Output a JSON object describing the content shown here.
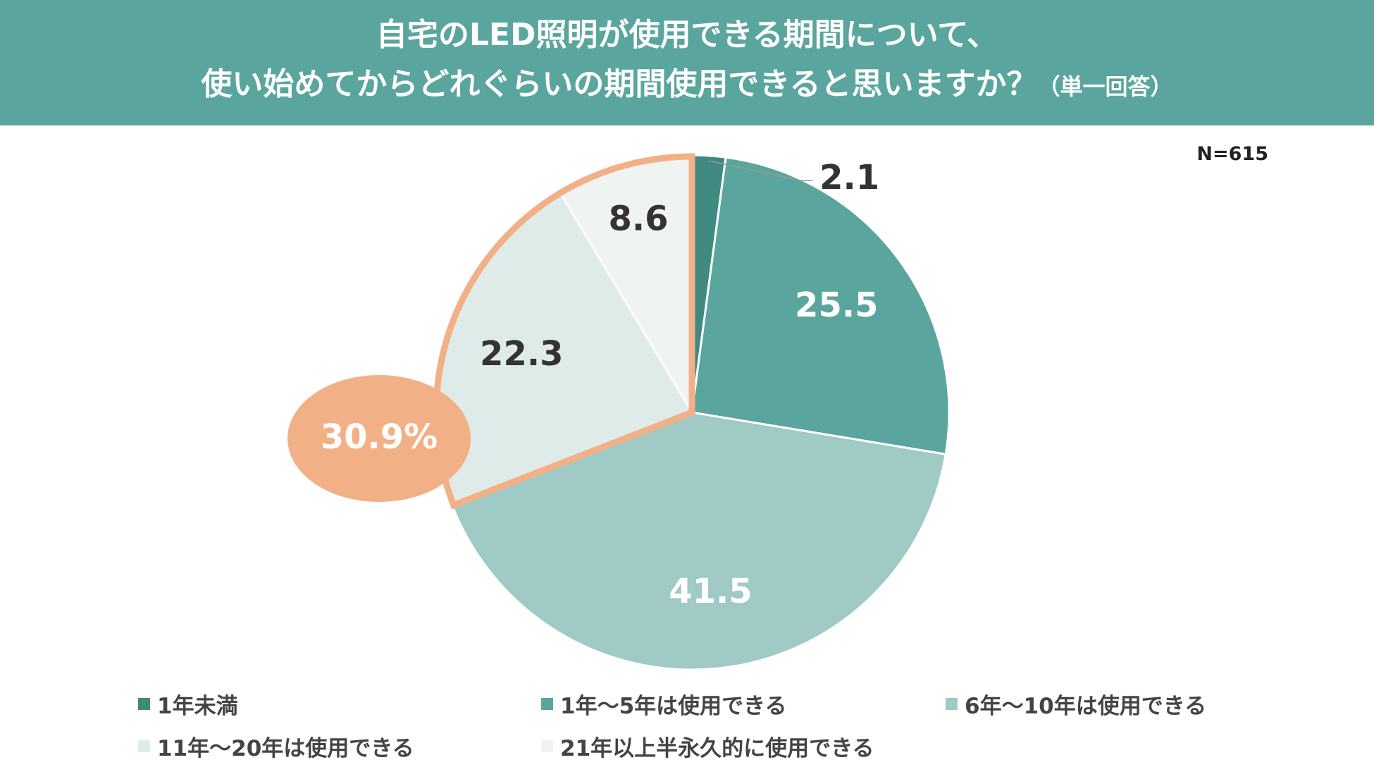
{
  "header": {
    "title_line1": "自宅のLED照明が使用できる期間について、",
    "title_line2": "使い始めてからどれぐらいの期間使用できると思いますか？",
    "title_note": "（単一回答）"
  },
  "sample_size": "N=615",
  "chart_data": {
    "type": "pie",
    "title": "自宅のLED照明が使用できる期間について、使い始めてからどれぐらいの期間使用できると思いますか？（単一回答）",
    "unit": "%",
    "start_angle": "12 o'clock",
    "direction": "clockwise",
    "slices": [
      {
        "label": "1年未満",
        "value": 2.1,
        "color": "#3f8a80",
        "label_color": "#333333",
        "value_text": "2.1"
      },
      {
        "label": "1年～5年は使用できる",
        "value": 25.5,
        "color": "#5aa69e",
        "label_color": "#ffffff",
        "value_text": "25.5"
      },
      {
        "label": "6年～10年は使用できる",
        "value": 41.5,
        "color": "#9fcac6",
        "label_color": "#ffffff",
        "value_text": "41.5"
      },
      {
        "label": "11年～20年は使用できる",
        "value": 22.3,
        "color": "#deebe9",
        "label_color": "#333333",
        "value_text": "22.3"
      },
      {
        "label": "21年以上半永久的に使用できる",
        "value": 8.6,
        "color": "#eff3f2",
        "label_color": "#333333",
        "value_text": "8.6"
      }
    ],
    "highlight": {
      "slices": [
        "11年～20年は使用できる",
        "21年以上半永久的に使用できる"
      ],
      "total_text": "30.9%",
      "color": "#f2b086"
    },
    "legend_position": "bottom"
  }
}
